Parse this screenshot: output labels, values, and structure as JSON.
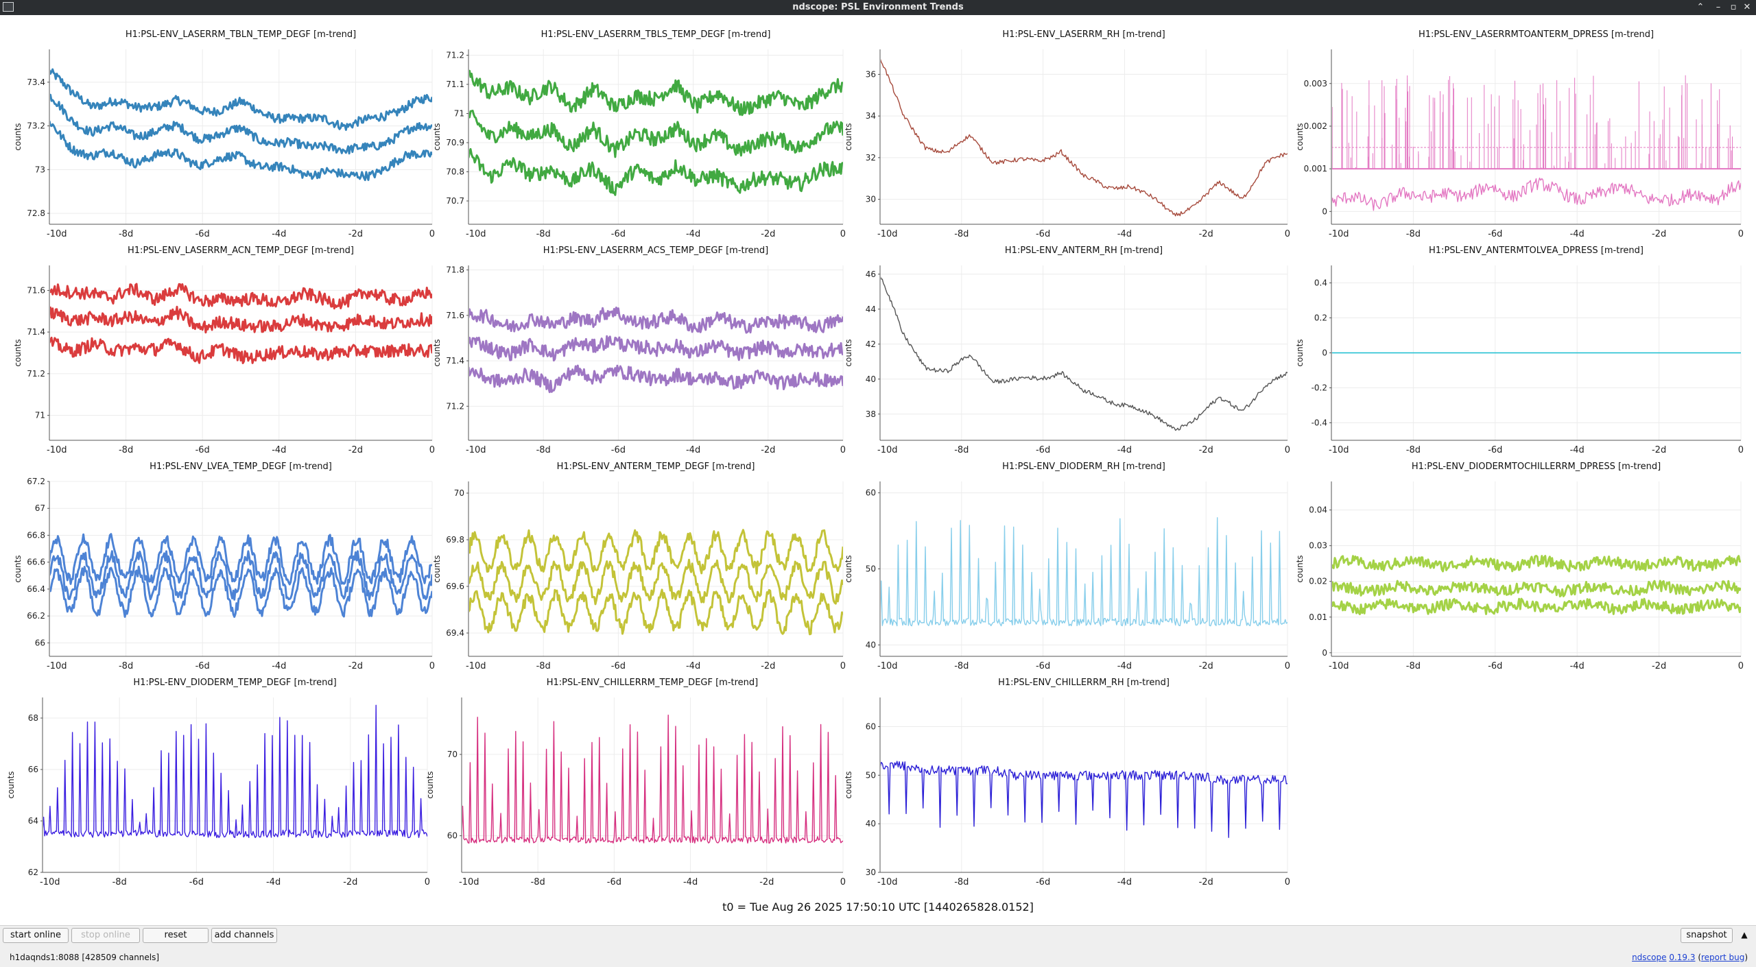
{
  "window": {
    "title": "ndscope: PSL Environment Trends"
  },
  "colors": {
    "titlebar": "#2b2e31",
    "grid": "#ececec",
    "axis": "#555555"
  },
  "plots": [
    {
      "channel": "H1:PSL-ENV_LASERRM_TBLN_TEMP_DEGF [m-trend]",
      "ylabel": "counts",
      "color": "#1f77b4",
      "style": "band3",
      "ylim": [
        72.75,
        73.55
      ],
      "yticks": [
        "72.8",
        "73",
        "73.2",
        "73.4"
      ],
      "ytick_values": [
        72.8,
        73.0,
        73.2,
        73.4
      ],
      "xticks": [
        "-10d",
        "-8d",
        "-6d",
        "-4d",
        "-2d",
        "0"
      ],
      "trend": [
        73.45,
        73.35,
        73.3,
        73.31,
        73.28,
        73.3,
        73.31,
        73.27,
        73.28,
        73.3,
        73.26,
        73.24,
        73.22,
        73.24,
        73.2,
        73.22,
        73.26,
        73.3,
        73.32
      ],
      "offsets": [
        0.0,
        -0.12,
        -0.24
      ],
      "noise": 0.02
    },
    {
      "channel": "H1:PSL-ENV_LASERRM_TBLS_TEMP_DEGF [m-trend]",
      "ylabel": "counts",
      "color": "#2ca02c",
      "style": "band3",
      "ylim": [
        70.62,
        71.22
      ],
      "yticks": [
        "70.7",
        "70.8",
        "70.9",
        "71",
        "71.1",
        "71.2"
      ],
      "ytick_values": [
        70.7,
        70.8,
        70.9,
        71.0,
        71.1,
        71.2
      ],
      "xticks": [
        "-10d",
        "-8d",
        "-6d",
        "-4d",
        "-2d",
        "0"
      ],
      "trend": [
        71.13,
        71.06,
        71.1,
        71.05,
        71.09,
        71.03,
        71.08,
        71.02,
        71.07,
        71.04,
        71.1,
        71.03,
        71.06,
        71.02,
        71.04,
        71.05,
        71.03,
        71.07,
        71.09
      ],
      "offsets": [
        0.0,
        -0.14,
        -0.27
      ],
      "noise": 0.025
    },
    {
      "channel": "H1:PSL-ENV_LASERRM_RH [m-trend]",
      "ylabel": "counts",
      "color": "#a64a3c",
      "style": "line",
      "ylim": [
        28.8,
        37.2
      ],
      "yticks": [
        "30",
        "32",
        "34",
        "36"
      ],
      "ytick_values": [
        30,
        32,
        34,
        36
      ],
      "xticks": [
        "-10d",
        "-8d",
        "-6d",
        "-4d",
        "-2d",
        "0"
      ],
      "trend": [
        36.8,
        34.0,
        32.6,
        32.2,
        33.0,
        31.9,
        31.8,
        31.8,
        32.4,
        31.0,
        30.6,
        30.7,
        30.0,
        29.3,
        29.8,
        30.7,
        30.1,
        31.7,
        32.1
      ],
      "offsets": [
        0.0
      ],
      "noise": 0.1
    },
    {
      "channel": "H1:PSL-ENV_LASERRMTOANTERM_DPRESS [m-trend]",
      "ylabel": "counts",
      "color": "#e377c2",
      "style": "spiky",
      "ylim": [
        -0.0003,
        0.0038
      ],
      "yticks": [
        "0",
        "0.001",
        "0.002",
        "0.003"
      ],
      "ytick_values": [
        0,
        0.001,
        0.002,
        0.003
      ],
      "xticks": [
        "-10d",
        "-8d",
        "-6d",
        "-4d",
        "-2d",
        "0"
      ],
      "trend": [
        0.0002,
        0.0003,
        0.0002,
        0.0004,
        0.0003,
        0.0005,
        0.0003,
        0.0006,
        0.0004,
        0.0006,
        0.0005,
        0.0003,
        0.0004,
        0.0006,
        0.0003,
        0.0002,
        0.0005,
        0.0003,
        0.0006
      ],
      "offsets": [
        0.0
      ],
      "noise": 0.00015
    },
    {
      "channel": "H1:PSL-ENV_LASERRM_ACN_TEMP_DEGF [m-trend]",
      "ylabel": "counts",
      "color": "#d62728",
      "style": "band3",
      "ylim": [
        70.88,
        71.72
      ],
      "yticks": [
        "71",
        "71.2",
        "71.4",
        "71.6"
      ],
      "ytick_values": [
        71.0,
        71.2,
        71.4,
        71.6
      ],
      "xticks": [
        "-10d",
        "-8d",
        "-6d",
        "-4d",
        "-2d",
        "0"
      ],
      "trend": [
        71.6,
        71.58,
        71.6,
        71.56,
        71.6,
        71.57,
        71.6,
        71.55,
        71.57,
        71.54,
        71.56,
        71.55,
        71.57,
        71.56,
        71.55,
        71.58,
        71.57,
        71.56,
        71.58
      ],
      "offsets": [
        0.0,
        -0.12,
        -0.26
      ],
      "noise": 0.03
    },
    {
      "channel": "H1:PSL-ENV_LASERRM_ACS_TEMP_DEGF [m-trend]",
      "ylabel": "counts",
      "color": "#9467bd",
      "style": "band3",
      "ylim": [
        71.05,
        71.82
      ],
      "yticks": [
        "71.2",
        "71.4",
        "71.6",
        "71.8"
      ],
      "ytick_values": [
        71.2,
        71.4,
        71.6,
        71.8
      ],
      "xticks": [
        "-10d",
        "-8d",
        "-6d",
        "-4d",
        "-2d",
        "0"
      ],
      "trend": [
        71.6,
        71.58,
        71.56,
        71.58,
        71.55,
        71.6,
        71.57,
        71.62,
        71.58,
        71.56,
        71.6,
        71.55,
        71.58,
        71.56,
        71.57,
        71.56,
        71.58,
        71.55,
        71.57
      ],
      "offsets": [
        0.0,
        -0.12,
        -0.25
      ],
      "noise": 0.03
    },
    {
      "channel": "H1:PSL-ENV_ANTERM_RH [m-trend]",
      "ylabel": "counts",
      "color": "#555555",
      "style": "line",
      "ylim": [
        36.5,
        46.5
      ],
      "yticks": [
        "38",
        "40",
        "42",
        "44",
        "46"
      ],
      "ytick_values": [
        38,
        40,
        42,
        44,
        46
      ],
      "xticks": [
        "-10d",
        "-8d",
        "-6d",
        "-4d",
        "-2d",
        "0"
      ],
      "trend": [
        46.0,
        42.5,
        40.8,
        40.4,
        41.3,
        40.0,
        39.9,
        40.0,
        40.5,
        39.2,
        38.8,
        38.6,
        37.8,
        37.2,
        37.8,
        38.8,
        38.3,
        39.6,
        40.2
      ],
      "offsets": [
        0.0
      ],
      "noise": 0.12
    },
    {
      "channel": "H1:PSL-ENV_ANTERMTOLVEA_DPRESS [m-trend]",
      "ylabel": "counts",
      "color": "#17becf",
      "style": "flat",
      "ylim": [
        -0.5,
        0.5
      ],
      "yticks": [
        "-0.4",
        "-0.2",
        "0",
        "0.2",
        "0.4"
      ],
      "ytick_values": [
        -0.4,
        -0.2,
        0,
        0.2,
        0.4
      ],
      "xticks": [
        "-10d",
        "-8d",
        "-6d",
        "-4d",
        "-2d",
        "0"
      ],
      "trend": [
        0,
        0,
        0,
        0,
        0,
        0,
        0,
        0,
        0,
        0,
        0,
        0,
        0,
        0,
        0,
        0,
        0,
        0,
        0
      ],
      "offsets": [
        0.0
      ],
      "noise": 0.0
    },
    {
      "channel": "H1:PSL-ENV_LVEA_TEMP_DEGF [m-trend]",
      "ylabel": "counts",
      "color": "#3a76d0",
      "style": "osc",
      "ylim": [
        65.9,
        67.2
      ],
      "yticks": [
        "66",
        "66.2",
        "66.4",
        "66.6",
        "66.8",
        "67",
        "67.2"
      ],
      "ytick_values": [
        66.0,
        66.2,
        66.4,
        66.6,
        66.8,
        67.0,
        67.2
      ],
      "xticks": [
        "-10d",
        "-8d",
        "-6d",
        "-4d",
        "-2d",
        "0"
      ],
      "trend": [
        66.5,
        66.5,
        66.5,
        66.5,
        66.5,
        66.5,
        66.5,
        66.5,
        66.5,
        66.5,
        66.5,
        66.5,
        66.5,
        66.5,
        66.5,
        66.5,
        66.5,
        66.5,
        66.5
      ],
      "offsets": [
        0.12,
        0.0,
        -0.12
      ],
      "noise": 0.04,
      "amp": 0.25,
      "cycles": 14
    },
    {
      "channel": "H1:PSL-ENV_ANTERM_TEMP_DEGF [m-trend]",
      "ylabel": "counts",
      "color": "#bcbd22",
      "style": "osc",
      "ylim": [
        69.3,
        70.05
      ],
      "yticks": [
        "69.4",
        "69.6",
        "69.8",
        "70"
      ],
      "ytick_values": [
        69.4,
        69.6,
        69.8,
        70.0
      ],
      "xticks": [
        "-10d",
        "-8d",
        "-6d",
        "-4d",
        "-2d",
        "0"
      ],
      "trend": [
        69.62,
        69.62,
        69.62,
        69.62,
        69.62,
        69.62,
        69.62,
        69.62,
        69.62,
        69.62,
        69.62,
        69.62,
        69.62,
        69.62,
        69.62,
        69.62,
        69.62,
        69.62,
        69.62
      ],
      "offsets": [
        0.13,
        0.0,
        -0.13
      ],
      "noise": 0.025,
      "amp": 0.12,
      "cycles": 14
    },
    {
      "channel": "H1:PSL-ENV_DIODERM_RH [m-trend]",
      "ylabel": "counts",
      "color": "#87ceeb",
      "style": "pulse",
      "ylim": [
        38.5,
        61.5
      ],
      "yticks": [
        "40",
        "50",
        "60"
      ],
      "ytick_values": [
        40,
        50,
        60
      ],
      "xticks": [
        "-10d",
        "-8d",
        "-6d",
        "-4d",
        "-2d",
        "0"
      ],
      "trend": [
        43,
        43,
        43,
        43,
        43,
        43,
        43,
        43,
        43,
        43,
        43,
        43,
        43,
        43,
        43,
        43,
        43,
        43,
        43
      ],
      "offsets": [
        0.0
      ],
      "noise": 0.5,
      "amp": 14,
      "cycles": 46
    },
    {
      "channel": "H1:PSL-ENV_DIODERMTOCHILLERRM_DPRESS [m-trend]",
      "ylabel": "counts",
      "color": "#9acd32",
      "style": "band3",
      "ylim": [
        -0.001,
        0.048
      ],
      "yticks": [
        "0",
        "0.01",
        "0.02",
        "0.03",
        "0.04"
      ],
      "ytick_values": [
        0,
        0.01,
        0.02,
        0.03,
        0.04
      ],
      "xticks": [
        "-10d",
        "-8d",
        "-6d",
        "-4d",
        "-2d",
        "0"
      ],
      "trend": [
        0.025,
        0.025,
        0.025,
        0.025,
        0.025,
        0.025,
        0.025,
        0.025,
        0.025,
        0.025,
        0.025,
        0.025,
        0.025,
        0.025,
        0.025,
        0.025,
        0.025,
        0.025,
        0.025
      ],
      "offsets": [
        0.0,
        -0.007,
        -0.012
      ],
      "noise": 0.0015
    },
    {
      "channel": "H1:PSL-ENV_DIODERM_TEMP_DEGF [m-trend]",
      "ylabel": "counts",
      "color": "#3b1fe0",
      "style": "pulse",
      "ylim": [
        62.0,
        68.8
      ],
      "yticks": [
        "62",
        "64",
        "66",
        "68"
      ],
      "ytick_values": [
        62,
        64,
        66,
        68
      ],
      "xticks": [
        "-10d",
        "-8d",
        "-6d",
        "-4d",
        "-2d",
        "0"
      ],
      "trend": [
        63.5,
        63.5,
        63.5,
        63.5,
        63.5,
        63.5,
        63.5,
        63.5,
        63.5,
        63.5,
        63.5,
        63.5,
        63.5,
        63.5,
        63.5,
        63.5,
        63.5,
        63.5,
        63.5
      ],
      "offsets": [
        0.0
      ],
      "noise": 0.15,
      "amp": 4.8,
      "cycles": 52
    },
    {
      "channel": "H1:PSL-ENV_CHILLERRM_TEMP_DEGF [m-trend]",
      "ylabel": "counts",
      "color": "#d62f7f",
      "style": "pulse",
      "ylim": [
        55.5,
        77.0
      ],
      "yticks": [
        "60",
        "70"
      ],
      "ytick_values": [
        60,
        70
      ],
      "xticks": [
        "-10d",
        "-8d",
        "-6d",
        "-4d",
        "-2d",
        "0"
      ],
      "trend": [
        59.5,
        59.5,
        59.5,
        59.5,
        59.5,
        59.5,
        59.5,
        59.5,
        59.5,
        59.5,
        59.5,
        59.5,
        59.5,
        59.5,
        59.5,
        59.5,
        59.5,
        59.5,
        59.5
      ],
      "offsets": [
        0.0
      ],
      "noise": 0.4,
      "amp": 16,
      "cycles": 50
    },
    {
      "channel": "H1:PSL-ENV_CHILLERRM_RH [m-trend]",
      "ylabel": "counts",
      "color": "#2b1fd6",
      "style": "dip",
      "ylim": [
        30,
        66
      ],
      "yticks": [
        "30",
        "40",
        "50",
        "60"
      ],
      "ytick_values": [
        30,
        40,
        50,
        60
      ],
      "xticks": [
        "-10d",
        "-8d",
        "-6d",
        "-4d",
        "-2d",
        "0"
      ],
      "trend": [
        52,
        52,
        51,
        51,
        51,
        51,
        50,
        50,
        50,
        50,
        50,
        50,
        50,
        50,
        50,
        49,
        49,
        49,
        49
      ],
      "offsets": [
        0.0
      ],
      "noise": 1.0,
      "amp": 14,
      "cycles": 48
    }
  ],
  "t0_label": "t0 = Tue Aug 26 2025 17:50:10 UTC [1440265828.0152]",
  "buttons": {
    "start_online": "start online",
    "stop_online": "stop online",
    "reset": "reset",
    "add_channels": "add channels",
    "snapshot": "snapshot"
  },
  "status": {
    "server": "h1daqnds1:8088  [428509 channels]",
    "app_name": "ndscope",
    "version": "0.19.3",
    "report_bug": "report bug"
  }
}
